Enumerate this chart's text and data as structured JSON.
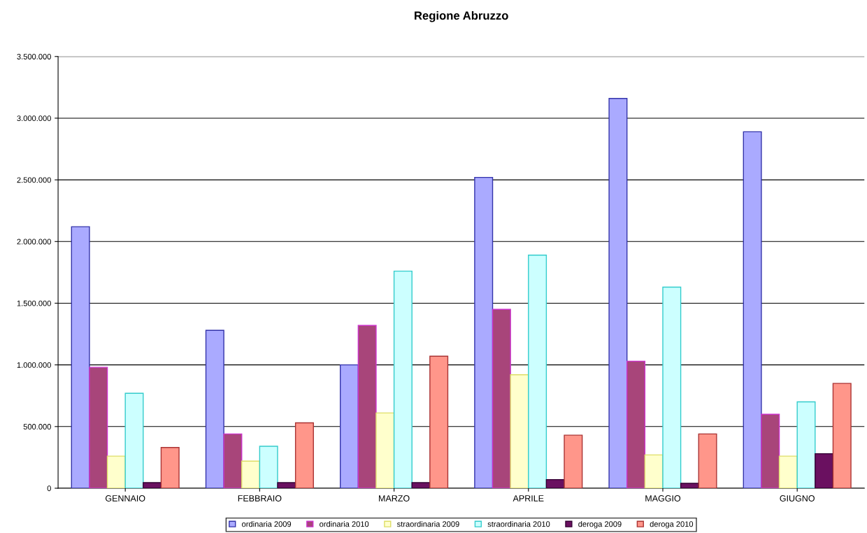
{
  "chart_data": {
    "type": "bar",
    "title": "Regione Abruzzo",
    "categories": [
      "GENNAIO",
      "FEBBRAIO",
      "MARZO",
      "APRILE",
      "MAGGIO",
      "GIUGNO"
    ],
    "series": [
      {
        "name": "ordinaria 2009",
        "color": "#aaaaff",
        "values": [
          2120000,
          1280000,
          1000000,
          2520000,
          3160000,
          2890000
        ]
      },
      {
        "name": "ordinaria 2010",
        "color": "#a8457a",
        "values": [
          980000,
          440000,
          1320000,
          1450000,
          1030000,
          600000
        ]
      },
      {
        "name": "straordinaria 2009",
        "color": "#ffffcc",
        "values": [
          260000,
          220000,
          610000,
          920000,
          270000,
          260000
        ]
      },
      {
        "name": "straordinaria 2010",
        "color": "#ccffff",
        "values": [
          770000,
          340000,
          1760000,
          1890000,
          1630000,
          700000
        ]
      },
      {
        "name": "deroga 2009",
        "color": "#6a1060",
        "values": [
          45000,
          45000,
          45000,
          70000,
          40000,
          280000
        ]
      },
      {
        "name": "deroga 2010",
        "color": "#ff968a",
        "values": [
          330000,
          530000,
          1070000,
          430000,
          440000,
          850000
        ]
      }
    ],
    "ylim": [
      0,
      3500000
    ],
    "yticks": [
      {
        "value": 0,
        "label": "0"
      },
      {
        "value": 500000,
        "label": "500.000"
      },
      {
        "value": 1000000,
        "label": "1.000.000"
      },
      {
        "value": 1500000,
        "label": "1.500.000"
      },
      {
        "value": 2000000,
        "label": "2.000.000"
      },
      {
        "value": 2500000,
        "label": "2.500.000"
      },
      {
        "value": 3000000,
        "label": "3.000.000"
      },
      {
        "value": 3500000,
        "label": "3.500.000"
      }
    ],
    "grid": "y",
    "legend": "bottom"
  }
}
